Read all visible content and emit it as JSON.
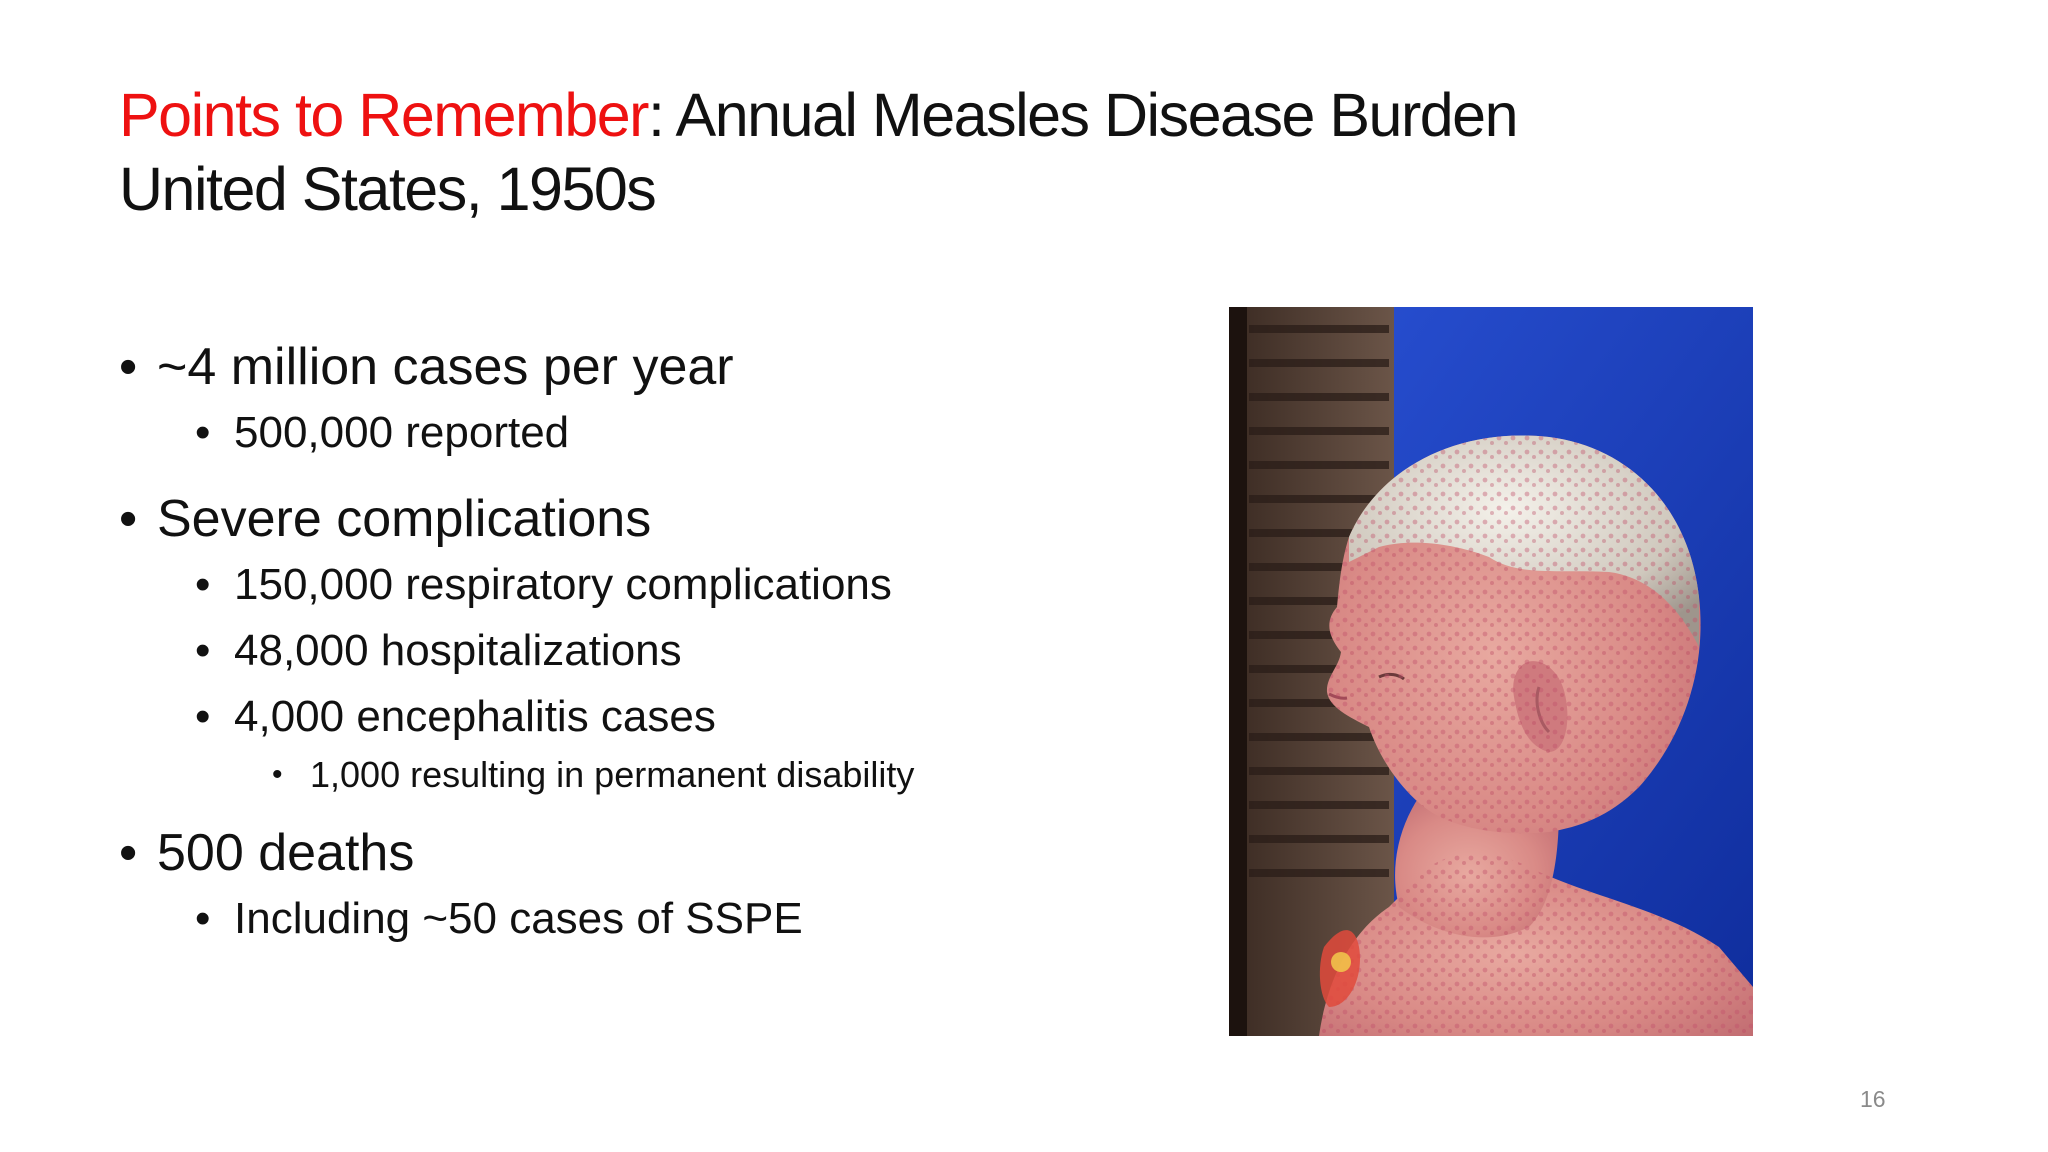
{
  "slide": {
    "title_accent": "Points to Remember",
    "title_rest": ": Annual Measles Disease Burden",
    "title_line2": "United States, 1950s",
    "bullets": [
      {
        "level": 1,
        "text": "~4 million cases per year"
      },
      {
        "level": 2,
        "text": "500,000 reported"
      },
      {
        "level": 1,
        "text": "Severe complications"
      },
      {
        "level": 2,
        "text": "150,000 respiratory complications"
      },
      {
        "level": 2,
        "text": "48,000 hospitalizations"
      },
      {
        "level": 2,
        "text": "4,000 encephalitis cases"
      },
      {
        "level": 3,
        "text": "1,000 resulting in permanent disability"
      },
      {
        "level": 1,
        "text": "500 deaths"
      },
      {
        "level": 2,
        "text": "Including ~50 cases of SSPE"
      }
    ],
    "bullet_glyph": "•",
    "page_number": "16",
    "colors": {
      "accent": "#ee1111",
      "text": "#111111",
      "page_number": "#8a8a8a",
      "photo_background": "#1a3fc0"
    }
  }
}
